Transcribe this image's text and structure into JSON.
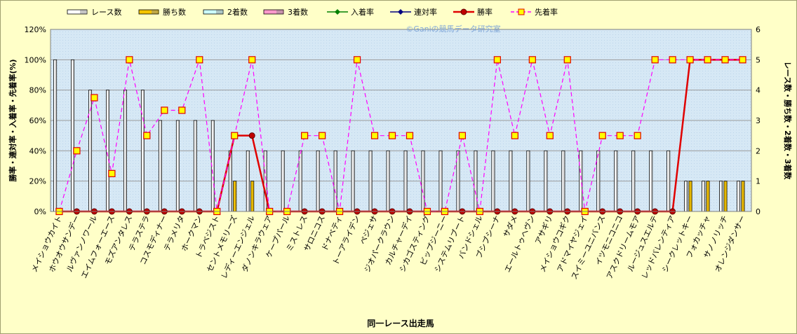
{
  "chart_data": {
    "type": "bar",
    "xlabel": "同一レース出走馬",
    "ylabel_left": "勝率・連対率・入着率・先着率(%)",
    "ylabel_right": "レース数・勝ち数・2着数・3着数",
    "watermark": "©Ganiの競馬データ研究室",
    "ylim_left": [
      0,
      120
    ],
    "ylim_right": [
      0,
      6
    ],
    "yticks_left": [
      "0%",
      "20%",
      "40%",
      "60%",
      "80%",
      "100%",
      "120%"
    ],
    "yticks_right": [
      "0",
      "1",
      "2",
      "3",
      "4",
      "5",
      "6"
    ],
    "legend": {
      "races": "レース数",
      "wins": "勝ち数",
      "second": "2着数",
      "third": "3着数",
      "show_rate": "入着率",
      "place_rate": "連対率",
      "win_rate": "勝率",
      "ahead_rate": "先着率"
    },
    "categories": [
      "メイショウカイト",
      "ホウオウサンデー",
      "ルヴァンノワール",
      "エイムフォーエース",
      "モズアンタレス",
      "テラステラ",
      "コスモディナー",
      "テラメリタ",
      "ホークマン",
      "トラベジスト",
      "セントメモリーズ",
      "レディーエンジェル",
      "ダノンキラウェア",
      "ケープパール",
      "ミストレス",
      "サロニコス",
      "ドナベティ",
      "トーアライデン",
      "ペジェサ",
      "ジオパークラウン",
      "カルチャーデイ",
      "シカゴスティング",
      "ビップジーニー",
      "システムリブート",
      "バンドシェル",
      "ブシブシーナ",
      "サダメ",
      "エールトゥヘヴン",
      "アサギリ",
      "メイショウコギク",
      "アドマイヤジェイ",
      "スイミーユニバンス",
      "イツモニコニコ",
      "アスクドリームモア",
      "ルージュスエルテ",
      "レッドバレンティア",
      "シークレットキー",
      "フォカッチャ",
      "サノノリッチ",
      "オレンジダンサー"
    ],
    "series": [
      {
        "name": "レース数",
        "axis": "right",
        "values": [
          5,
          5,
          4,
          4,
          4,
          4,
          3,
          3,
          3,
          3,
          2,
          2,
          2,
          2,
          2,
          2,
          2,
          2,
          2,
          2,
          2,
          2,
          2,
          2,
          2,
          2,
          2,
          2,
          2,
          2,
          2,
          2,
          2,
          2,
          2,
          2,
          1,
          1,
          1,
          1
        ]
      },
      {
        "name": "勝ち数",
        "axis": "right",
        "values": [
          0,
          0,
          0,
          0,
          0,
          0,
          0,
          0,
          0,
          0,
          1,
          1,
          0,
          0,
          0,
          0,
          0,
          0,
          0,
          0,
          0,
          0,
          0,
          0,
          0,
          0,
          0,
          0,
          0,
          0,
          0,
          0,
          0,
          0,
          0,
          0,
          1,
          1,
          1,
          1
        ]
      },
      {
        "name": "2着数",
        "axis": "right",
        "values": [
          0,
          0,
          0,
          0,
          0,
          0,
          0,
          0,
          0,
          0,
          0,
          0,
          0,
          0,
          0,
          0,
          0,
          0,
          0,
          0,
          0,
          0,
          0,
          0,
          0,
          0,
          0,
          0,
          0,
          0,
          0,
          0,
          0,
          0,
          0,
          0,
          0,
          0,
          0,
          0
        ]
      },
      {
        "name": "3着数",
        "axis": "right",
        "values": [
          0,
          0,
          0,
          0,
          0,
          0,
          0,
          0,
          0,
          0,
          0,
          0,
          0,
          0,
          0,
          0,
          0,
          0,
          0,
          0,
          0,
          0,
          0,
          0,
          0,
          0,
          0,
          0,
          0,
          0,
          0,
          0,
          0,
          0,
          0,
          0,
          0,
          0,
          0,
          0
        ]
      },
      {
        "name": "入着率",
        "axis": "left",
        "values": [
          0,
          0,
          0,
          0,
          0,
          0,
          0,
          0,
          0,
          0,
          50,
          50,
          0,
          0,
          0,
          0,
          0,
          0,
          0,
          0,
          0,
          0,
          0,
          0,
          0,
          0,
          0,
          0,
          0,
          0,
          0,
          0,
          0,
          0,
          0,
          0,
          100,
          100,
          100,
          100
        ]
      },
      {
        "name": "連対率",
        "axis": "left",
        "values": [
          0,
          0,
          0,
          0,
          0,
          0,
          0,
          0,
          0,
          0,
          50,
          50,
          0,
          0,
          0,
          0,
          0,
          0,
          0,
          0,
          0,
          0,
          0,
          0,
          0,
          0,
          0,
          0,
          0,
          0,
          0,
          0,
          0,
          0,
          0,
          0,
          100,
          100,
          100,
          100
        ]
      },
      {
        "name": "勝率",
        "axis": "left",
        "values": [
          0,
          0,
          0,
          0,
          0,
          0,
          0,
          0,
          0,
          0,
          50,
          50,
          0,
          0,
          0,
          0,
          0,
          0,
          0,
          0,
          0,
          0,
          0,
          0,
          0,
          0,
          0,
          0,
          0,
          0,
          0,
          0,
          0,
          0,
          0,
          0,
          100,
          100,
          100,
          100
        ]
      },
      {
        "name": "先着率",
        "axis": "left",
        "values": [
          0,
          40,
          75,
          25,
          100,
          50,
          66.7,
          66.7,
          100,
          0,
          50,
          100,
          0,
          0,
          50,
          50,
          0,
          100,
          50,
          50,
          50,
          0,
          0,
          50,
          0,
          100,
          50,
          100,
          50,
          100,
          0,
          50,
          50,
          50,
          100,
          100,
          100,
          100,
          100,
          100
        ]
      }
    ],
    "colors": {
      "plot_bg": "#d6e8f5",
      "page_bg": "#ffffc8",
      "races": "#ffffff",
      "wins": "#f5c400",
      "second": "#ccffff",
      "third": "#ff99cc",
      "show_rate": "#008000",
      "place_rate": "#000080",
      "win_rate": "#e00000",
      "ahead_rate": "#ff00ff",
      "marker_fill": "#ffff00"
    },
    "grid": true,
    "legend_position": "top"
  }
}
